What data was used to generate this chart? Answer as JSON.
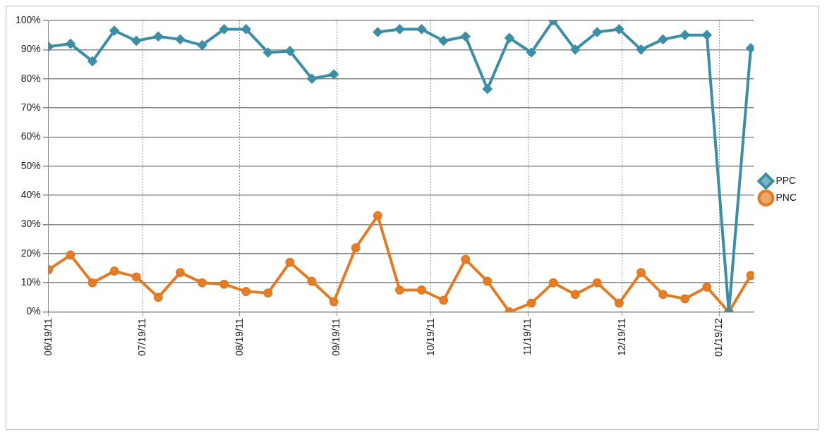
{
  "chart_data": {
    "type": "line",
    "x": [
      "2011-06-19",
      "2011-06-26",
      "2011-07-03",
      "2011-07-10",
      "2011-07-17",
      "2011-07-24",
      "2011-07-31",
      "2011-08-07",
      "2011-08-14",
      "2011-08-21",
      "2011-08-28",
      "2011-09-04",
      "2011-09-11",
      "2011-09-18",
      "2011-09-25",
      "2011-10-02",
      "2011-10-09",
      "2011-10-16",
      "2011-10-23",
      "2011-10-30",
      "2011-11-06",
      "2011-11-13",
      "2011-11-20",
      "2011-11-27",
      "2011-12-04",
      "2011-12-11",
      "2011-12-18",
      "2011-12-25",
      "2012-01-01",
      "2012-01-08",
      "2012-01-15",
      "2012-01-22",
      "2012-01-29"
    ],
    "series": [
      {
        "name": "PPC",
        "color": "#3b8ea5",
        "marker": "diamond",
        "values": [
          91,
          92,
          86,
          96.5,
          93,
          94.5,
          93.5,
          91.5,
          97,
          97,
          89,
          89.5,
          80,
          81.5,
          null,
          96,
          97,
          97,
          93,
          94.5,
          76.5,
          94,
          89,
          100,
          90,
          96,
          97,
          90,
          93.5,
          95,
          95,
          0,
          90.5
        ]
      },
      {
        "name": "PNC",
        "color": "#e37b24",
        "marker": "circle",
        "values": [
          14.5,
          19.5,
          10,
          14,
          12,
          5,
          13.5,
          10,
          9.5,
          7,
          6.5,
          17,
          10.5,
          3.5,
          22,
          33,
          7.5,
          7.5,
          4,
          18,
          10.5,
          0,
          3,
          10,
          6,
          10,
          3,
          13.5,
          6,
          4.5,
          8.5,
          0,
          12.5
        ]
      }
    ],
    "xlim": [
      "2011-06-19",
      "2012-01-30"
    ],
    "xticks": [
      {
        "value": "2011-06-19",
        "label": "06/19/11"
      },
      {
        "value": "2011-07-19",
        "label": "07/19/11"
      },
      {
        "value": "2011-08-19",
        "label": "08/19/11"
      },
      {
        "value": "2011-09-19",
        "label": "09/19/11"
      },
      {
        "value": "2011-10-19",
        "label": "10/19/11"
      },
      {
        "value": "2011-11-19",
        "label": "11/19/11"
      },
      {
        "value": "2011-12-19",
        "label": "12/19/11"
      },
      {
        "value": "2012-01-19",
        "label": "01/19/12"
      }
    ],
    "ylim": [
      0,
      100
    ],
    "yticks": [
      {
        "value": 0,
        "label": "0%"
      },
      {
        "value": 10,
        "label": "10%"
      },
      {
        "value": 20,
        "label": "20%"
      },
      {
        "value": 30,
        "label": "30%"
      },
      {
        "value": 40,
        "label": "40%"
      },
      {
        "value": 50,
        "label": "50%"
      },
      {
        "value": 60,
        "label": "60%"
      },
      {
        "value": 70,
        "label": "70%"
      },
      {
        "value": 80,
        "label": "80%"
      },
      {
        "value": 90,
        "label": "90%"
      },
      {
        "value": 100,
        "label": "100%"
      }
    ],
    "grid": true,
    "legend": "right",
    "line_style": "solid"
  }
}
